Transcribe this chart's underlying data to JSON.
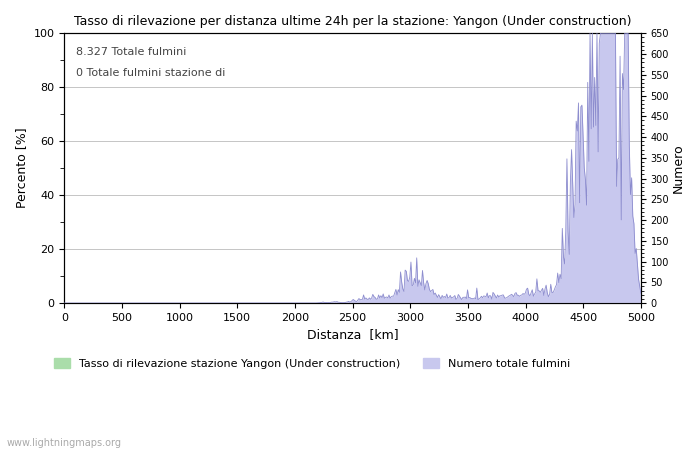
{
  "title": "Tasso di rilevazione per distanza ultime 24h per la stazione: Yangon (Under construction)",
  "xlabel": "Distanza  [km]",
  "ylabel_left": "Percento [%]",
  "ylabel_right": "Numero",
  "annotation1": "8.327 Totale fulmini",
  "annotation2": "0 Totale fulmini stazione di",
  "xlim": [
    0,
    5000
  ],
  "ylim_left": [
    0,
    100
  ],
  "ylim_right": [
    0,
    650
  ],
  "xticks": [
    0,
    500,
    1000,
    1500,
    2000,
    2500,
    3000,
    3500,
    4000,
    4500,
    5000
  ],
  "yticks_left": [
    0,
    20,
    40,
    60,
    80,
    100
  ],
  "yticks_right": [
    0,
    50,
    100,
    150,
    200,
    250,
    300,
    350,
    400,
    450,
    500,
    550,
    600,
    650
  ],
  "legend1": "Tasso di rilevazione stazione Yangon (Under construction)",
  "legend2": "Numero totale fulmini",
  "color_green": "#aaddaa",
  "color_blue": "#c8c8ee",
  "color_line_blue": "#8888cc",
  "color_line_green": "#88bb88",
  "watermark": "www.lightningmaps.org",
  "background": "#ffffff",
  "grid_color": "#bbbbbb"
}
